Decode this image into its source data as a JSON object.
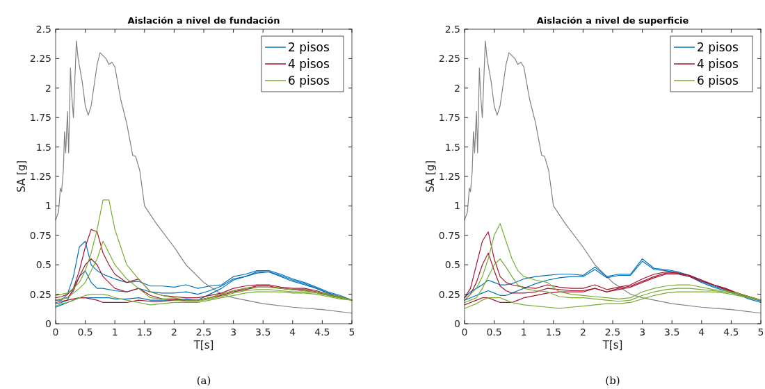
{
  "chart_data": [
    {
      "type": "line",
      "title": "Aislación a nivel de fundación",
      "xlabel": "T[s]",
      "ylabel": "SA [g]",
      "xlim": [
        0,
        5
      ],
      "ylim": [
        0,
        2.5
      ],
      "xticks": [
        0,
        0.5,
        1,
        1.5,
        2,
        2.5,
        3,
        3.5,
        4,
        4.5,
        5
      ],
      "yticks": [
        0,
        0.25,
        0.5,
        0.75,
        1,
        1.25,
        1.5,
        1.75,
        2,
        2.25,
        2.5
      ],
      "grid": false,
      "legend": "top right",
      "marker": "none",
      "line_style": "solid",
      "annotations": [
        "(a)"
      ],
      "x": [
        0,
        0.1,
        0.2,
        0.3,
        0.4,
        0.5,
        0.6,
        0.7,
        0.8,
        0.9,
        1.0,
        1.2,
        1.4,
        1.6,
        1.8,
        2.0,
        2.2,
        2.4,
        2.6,
        2.8,
        3.0,
        3.2,
        3.4,
        3.6,
        3.8,
        4.0,
        4.2,
        4.4,
        4.6,
        4.8,
        5.0
      ],
      "series": [
        {
          "color": "#808080",
          "x": [
            0,
            0.05,
            0.08,
            0.1,
            0.13,
            0.15,
            0.17,
            0.2,
            0.22,
            0.25,
            0.27,
            0.3,
            0.35,
            0.38,
            0.45,
            0.5,
            0.55,
            0.6,
            0.7,
            0.75,
            0.85,
            0.9,
            0.95,
            1.0,
            1.1,
            1.2,
            1.3,
            1.35,
            1.42,
            1.5,
            1.7,
            2.0,
            2.2,
            2.5,
            2.8,
            3.0,
            3.5,
            4.0,
            4.5,
            5.0
          ],
          "values": [
            0.88,
            0.95,
            1.15,
            1.12,
            1.3,
            1.63,
            1.45,
            1.8,
            1.45,
            2.17,
            1.95,
            1.75,
            2.4,
            2.25,
            2.05,
            1.85,
            1.77,
            1.85,
            2.2,
            2.3,
            2.25,
            2.2,
            2.22,
            2.18,
            1.9,
            1.7,
            1.43,
            1.42,
            1.3,
            1.0,
            0.85,
            0.65,
            0.5,
            0.35,
            0.25,
            0.22,
            0.17,
            0.14,
            0.12,
            0.09
          ]
        },
        {
          "name": "2 pisos",
          "color": "#0072bd",
          "values": [
            0.2,
            0.2,
            0.25,
            0.4,
            0.65,
            0.7,
            0.5,
            0.45,
            0.42,
            0.4,
            0.38,
            0.35,
            0.36,
            0.32,
            0.32,
            0.31,
            0.33,
            0.3,
            0.32,
            0.33,
            0.4,
            0.42,
            0.45,
            0.45,
            0.42,
            0.38,
            0.35,
            0.31,
            0.27,
            0.24,
            0.2
          ]
        },
        {
          "color": "#0072bd",
          "values": [
            0.17,
            0.18,
            0.2,
            0.3,
            0.4,
            0.45,
            0.35,
            0.3,
            0.3,
            0.29,
            0.28,
            0.27,
            0.3,
            0.27,
            0.26,
            0.26,
            0.27,
            0.25,
            0.28,
            0.32,
            0.38,
            0.4,
            0.44,
            0.44,
            0.41,
            0.37,
            0.34,
            0.3,
            0.26,
            0.23,
            0.2
          ]
        },
        {
          "color": "#0072bd",
          "values": [
            0.14,
            0.16,
            0.18,
            0.2,
            0.22,
            0.22,
            0.22,
            0.22,
            0.22,
            0.22,
            0.21,
            0.21,
            0.22,
            0.2,
            0.2,
            0.2,
            0.21,
            0.2,
            0.25,
            0.3,
            0.37,
            0.4,
            0.43,
            0.44,
            0.4,
            0.36,
            0.33,
            0.3,
            0.26,
            0.23,
            0.2
          ]
        },
        {
          "name": "4 pisos",
          "color": "#a2142f",
          "values": [
            0.22,
            0.23,
            0.25,
            0.3,
            0.45,
            0.65,
            0.8,
            0.78,
            0.6,
            0.5,
            0.42,
            0.35,
            0.38,
            0.27,
            0.24,
            0.23,
            0.22,
            0.22,
            0.24,
            0.26,
            0.3,
            0.32,
            0.33,
            0.33,
            0.31,
            0.3,
            0.3,
            0.28,
            0.25,
            0.23,
            0.2
          ]
        },
        {
          "color": "#a2142f",
          "values": [
            0.2,
            0.21,
            0.22,
            0.28,
            0.4,
            0.5,
            0.55,
            0.5,
            0.4,
            0.35,
            0.3,
            0.27,
            0.3,
            0.24,
            0.21,
            0.21,
            0.2,
            0.2,
            0.22,
            0.25,
            0.28,
            0.3,
            0.32,
            0.32,
            0.3,
            0.29,
            0.29,
            0.27,
            0.25,
            0.22,
            0.2
          ]
        },
        {
          "color": "#a2142f",
          "values": [
            0.18,
            0.19,
            0.2,
            0.21,
            0.22,
            0.22,
            0.21,
            0.2,
            0.18,
            0.18,
            0.18,
            0.18,
            0.2,
            0.19,
            0.19,
            0.2,
            0.2,
            0.2,
            0.22,
            0.24,
            0.27,
            0.29,
            0.31,
            0.31,
            0.3,
            0.29,
            0.28,
            0.27,
            0.24,
            0.22,
            0.2
          ]
        },
        {
          "name": "6 pisos",
          "color": "#77ac30",
          "values": [
            0.24,
            0.25,
            0.26,
            0.3,
            0.35,
            0.45,
            0.6,
            0.8,
            1.05,
            1.05,
            0.8,
            0.5,
            0.38,
            0.27,
            0.24,
            0.22,
            0.2,
            0.2,
            0.22,
            0.25,
            0.28,
            0.3,
            0.31,
            0.31,
            0.3,
            0.29,
            0.28,
            0.27,
            0.25,
            0.23,
            0.2
          ]
        },
        {
          "color": "#77ac30",
          "values": [
            0.2,
            0.21,
            0.22,
            0.26,
            0.3,
            0.35,
            0.45,
            0.55,
            0.7,
            0.6,
            0.5,
            0.38,
            0.3,
            0.22,
            0.21,
            0.2,
            0.19,
            0.19,
            0.21,
            0.23,
            0.26,
            0.28,
            0.29,
            0.29,
            0.28,
            0.27,
            0.27,
            0.26,
            0.24,
            0.22,
            0.2
          ]
        },
        {
          "color": "#77ac30",
          "values": [
            0.15,
            0.17,
            0.18,
            0.2,
            0.22,
            0.24,
            0.25,
            0.25,
            0.25,
            0.24,
            0.22,
            0.2,
            0.18,
            0.16,
            0.17,
            0.18,
            0.18,
            0.18,
            0.2,
            0.22,
            0.24,
            0.26,
            0.27,
            0.27,
            0.27,
            0.26,
            0.26,
            0.25,
            0.23,
            0.21,
            0.2
          ]
        }
      ]
    },
    {
      "type": "line",
      "title": "Aislación a nivel de superficie",
      "xlabel": "T[s]",
      "ylabel": "SA [g]",
      "xlim": [
        0,
        5
      ],
      "ylim": [
        0,
        2.5
      ],
      "xticks": [
        0,
        0.5,
        1,
        1.5,
        2,
        2.5,
        3,
        3.5,
        4,
        4.5,
        5
      ],
      "yticks": [
        0,
        0.25,
        0.5,
        0.75,
        1,
        1.25,
        1.5,
        1.75,
        2,
        2.25,
        2.5
      ],
      "grid": false,
      "legend": "top right",
      "marker": "none",
      "line_style": "solid",
      "annotations": [
        "(b)"
      ],
      "x": [
        0,
        0.1,
        0.2,
        0.3,
        0.4,
        0.5,
        0.6,
        0.7,
        0.8,
        0.9,
        1.0,
        1.2,
        1.4,
        1.6,
        1.8,
        2.0,
        2.2,
        2.4,
        2.6,
        2.8,
        3.0,
        3.2,
        3.4,
        3.6,
        3.8,
        4.0,
        4.2,
        4.4,
        4.6,
        4.8,
        5.0
      ],
      "series": [
        {
          "color": "#808080",
          "x": [
            0,
            0.05,
            0.08,
            0.1,
            0.13,
            0.15,
            0.17,
            0.2,
            0.22,
            0.25,
            0.27,
            0.3,
            0.35,
            0.38,
            0.45,
            0.5,
            0.55,
            0.6,
            0.7,
            0.75,
            0.85,
            0.9,
            0.95,
            1.0,
            1.1,
            1.2,
            1.3,
            1.35,
            1.42,
            1.5,
            1.7,
            2.0,
            2.2,
            2.5,
            2.8,
            3.0,
            3.5,
            4.0,
            4.5,
            5.0
          ],
          "values": [
            0.88,
            0.95,
            1.15,
            1.12,
            1.3,
            1.63,
            1.45,
            1.8,
            1.45,
            2.17,
            1.95,
            1.75,
            2.4,
            2.25,
            2.05,
            1.85,
            1.77,
            1.85,
            2.2,
            2.3,
            2.25,
            2.2,
            2.22,
            2.18,
            1.9,
            1.7,
            1.43,
            1.42,
            1.3,
            1.0,
            0.85,
            0.65,
            0.5,
            0.35,
            0.25,
            0.22,
            0.17,
            0.14,
            0.12,
            0.09
          ]
        },
        {
          "name": "2 pisos",
          "color": "#0072bd",
          "values": [
            0.22,
            0.27,
            0.3,
            0.33,
            0.37,
            0.35,
            0.33,
            0.33,
            0.34,
            0.36,
            0.38,
            0.4,
            0.41,
            0.42,
            0.42,
            0.41,
            0.48,
            0.4,
            0.42,
            0.42,
            0.55,
            0.47,
            0.46,
            0.44,
            0.41,
            0.36,
            0.32,
            0.29,
            0.26,
            0.22,
            0.19
          ]
        },
        {
          "color": "#0072bd",
          "values": [
            0.2,
            0.22,
            0.24,
            0.26,
            0.28,
            0.26,
            0.24,
            0.24,
            0.26,
            0.28,
            0.3,
            0.34,
            0.37,
            0.39,
            0.4,
            0.4,
            0.46,
            0.39,
            0.41,
            0.41,
            0.53,
            0.46,
            0.45,
            0.43,
            0.4,
            0.35,
            0.31,
            0.28,
            0.25,
            0.21,
            0.18
          ]
        },
        {
          "name": "4 pisos",
          "color": "#a2142f",
          "values": [
            0.22,
            0.3,
            0.5,
            0.7,
            0.78,
            0.55,
            0.4,
            0.35,
            0.33,
            0.32,
            0.31,
            0.3,
            0.33,
            0.31,
            0.3,
            0.3,
            0.33,
            0.29,
            0.31,
            0.33,
            0.38,
            0.42,
            0.44,
            0.43,
            0.41,
            0.37,
            0.33,
            0.3,
            0.26,
            0.23,
            0.2
          ]
        },
        {
          "color": "#a2142f",
          "values": [
            0.2,
            0.25,
            0.35,
            0.5,
            0.6,
            0.45,
            0.32,
            0.28,
            0.26,
            0.26,
            0.26,
            0.27,
            0.3,
            0.29,
            0.28,
            0.28,
            0.3,
            0.27,
            0.3,
            0.32,
            0.36,
            0.4,
            0.43,
            0.43,
            0.41,
            0.37,
            0.33,
            0.3,
            0.26,
            0.23,
            0.2
          ]
        },
        {
          "color": "#a2142f",
          "values": [
            0.16,
            0.18,
            0.2,
            0.22,
            0.22,
            0.2,
            0.18,
            0.18,
            0.18,
            0.2,
            0.22,
            0.24,
            0.26,
            0.27,
            0.27,
            0.27,
            0.3,
            0.27,
            0.29,
            0.31,
            0.35,
            0.39,
            0.42,
            0.42,
            0.4,
            0.36,
            0.33,
            0.29,
            0.26,
            0.23,
            0.2
          ]
        },
        {
          "name": "6 pisos",
          "color": "#77ac30",
          "values": [
            0.2,
            0.25,
            0.3,
            0.4,
            0.55,
            0.75,
            0.85,
            0.7,
            0.55,
            0.45,
            0.4,
            0.37,
            0.35,
            0.27,
            0.25,
            0.24,
            0.23,
            0.22,
            0.21,
            0.22,
            0.27,
            0.3,
            0.32,
            0.33,
            0.33,
            0.31,
            0.29,
            0.28,
            0.26,
            0.23,
            0.2
          ]
        },
        {
          "color": "#77ac30",
          "values": [
            0.18,
            0.2,
            0.22,
            0.3,
            0.4,
            0.5,
            0.55,
            0.48,
            0.4,
            0.33,
            0.3,
            0.28,
            0.27,
            0.23,
            0.22,
            0.22,
            0.21,
            0.2,
            0.19,
            0.2,
            0.24,
            0.27,
            0.29,
            0.3,
            0.3,
            0.29,
            0.28,
            0.27,
            0.25,
            0.22,
            0.2
          ]
        },
        {
          "color": "#77ac30",
          "values": [
            0.13,
            0.15,
            0.17,
            0.2,
            0.22,
            0.22,
            0.22,
            0.2,
            0.18,
            0.17,
            0.16,
            0.15,
            0.14,
            0.13,
            0.14,
            0.15,
            0.16,
            0.17,
            0.17,
            0.18,
            0.21,
            0.24,
            0.26,
            0.27,
            0.27,
            0.27,
            0.27,
            0.26,
            0.24,
            0.22,
            0.2
          ]
        }
      ]
    }
  ]
}
